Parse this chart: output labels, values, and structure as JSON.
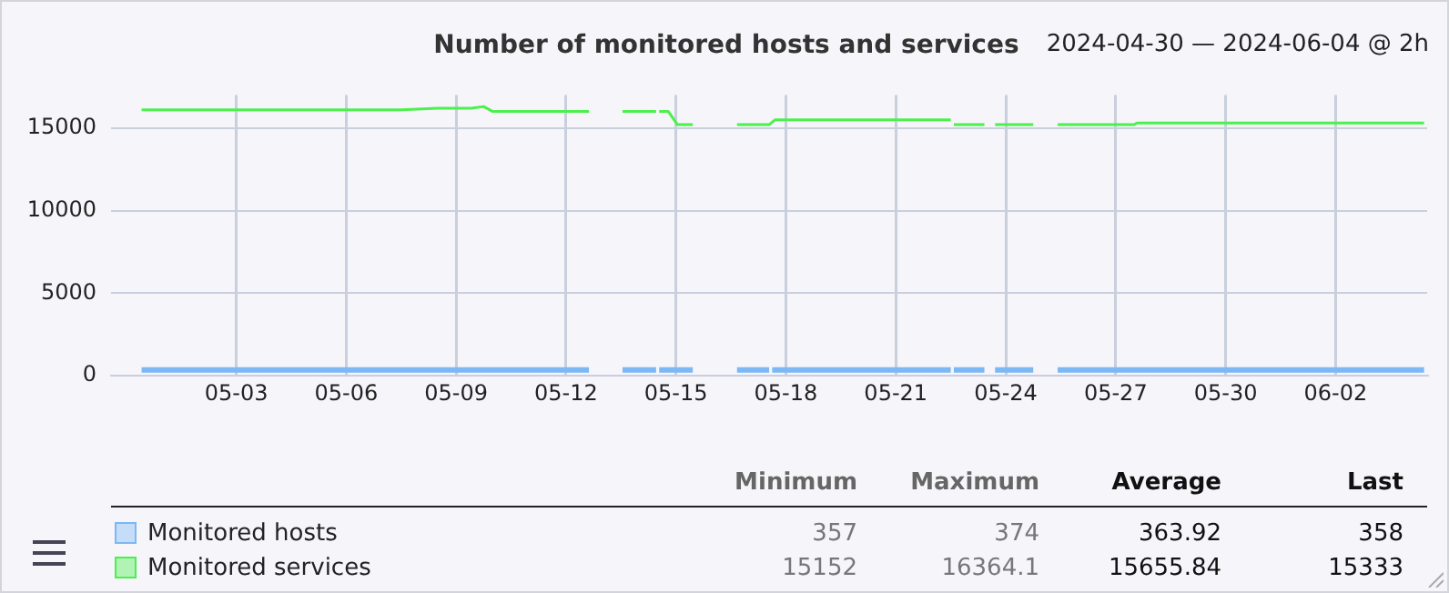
{
  "chart_data": {
    "type": "line",
    "title": "Number of monitored hosts and services",
    "subtitle": "2024-04-30 — 2024-06-04 @ 2h",
    "xlim": [
      "2024-04-29T14:00",
      "2024-06-04T12:00"
    ],
    "xticks": [
      {
        "value": "2024-05-03",
        "label": "05-03"
      },
      {
        "value": "2024-05-06",
        "label": "05-06"
      },
      {
        "value": "2024-05-09",
        "label": "05-09"
      },
      {
        "value": "2024-05-12",
        "label": "05-12"
      },
      {
        "value": "2024-05-15",
        "label": "05-15"
      },
      {
        "value": "2024-05-18",
        "label": "05-18"
      },
      {
        "value": "2024-05-21",
        "label": "05-21"
      },
      {
        "value": "2024-05-24",
        "label": "05-24"
      },
      {
        "value": "2024-05-27",
        "label": "05-27"
      },
      {
        "value": "2024-05-30",
        "label": "05-30"
      },
      {
        "value": "2024-06-02",
        "label": "06-02"
      }
    ],
    "ylim": [
      0,
      17000
    ],
    "yticks": [
      0,
      5000,
      10000,
      15000
    ],
    "grid": true,
    "legend": "bottom",
    "marker": "none",
    "line_style": "solid",
    "series": [
      {
        "name": "Monitored hosts",
        "color": "#7cb8f4",
        "x": [
          "2024-04-30T10:00",
          "2024-05-08T12:00",
          "2024-05-12T15:00",
          "2024-05-13T02:00",
          "2024-05-13T13:00",
          "2024-05-14T11:00",
          "2024-05-14T12:00",
          "2024-05-14T13:00",
          "2024-05-15T11:00",
          "2024-05-16T00:00",
          "2024-05-16T16:00",
          "2024-05-17T13:00",
          "2024-05-17T14:00",
          "2024-05-17T15:00",
          "2024-05-22T12:00",
          "2024-05-22T13:00",
          "2024-05-22T14:00",
          "2024-05-23T10:00",
          "2024-05-23T13:00",
          "2024-05-23T17:00",
          "2024-05-24T18:00",
          "2024-05-25T02:00",
          "2024-05-25T10:00",
          "2024-06-04T10:00"
        ],
        "values": [
          360,
          360,
          360,
          null,
          360,
          360,
          null,
          360,
          360,
          null,
          360,
          360,
          null,
          360,
          360,
          null,
          360,
          360,
          null,
          360,
          360,
          null,
          360,
          360
        ]
      },
      {
        "name": "Monitored services",
        "color": "#4cf04c",
        "x": [
          "2024-04-30T10:00",
          "2024-05-07T12:00",
          "2024-05-08T12:00",
          "2024-05-09T10:00",
          "2024-05-09T18:00",
          "2024-05-10T00:00",
          "2024-05-12T15:00",
          "2024-05-13T02:00",
          "2024-05-13T13:00",
          "2024-05-14T11:00",
          "2024-05-14T12:00",
          "2024-05-14T13:00",
          "2024-05-14T19:00",
          "2024-05-15T01:00",
          "2024-05-15T11:00",
          "2024-05-16T00:00",
          "2024-05-16T16:00",
          "2024-05-17T13:00",
          "2024-05-17T17:00",
          "2024-05-22T12:00",
          "2024-05-22T13:00",
          "2024-05-22T14:00",
          "2024-05-23T10:00",
          "2024-05-23T13:00",
          "2024-05-23T17:00",
          "2024-05-24T18:00",
          "2024-05-25T02:00",
          "2024-05-25T10:00",
          "2024-05-27T12:00",
          "2024-05-27T14:00",
          "2024-06-04T10:00"
        ],
        "values": [
          16100,
          16100,
          16200,
          16200,
          16300,
          16000,
          16000,
          null,
          16000,
          16000,
          null,
          16000,
          16000,
          15200,
          15200,
          null,
          15200,
          15200,
          15500,
          15500,
          null,
          15200,
          15200,
          null,
          15200,
          15200,
          null,
          15200,
          15200,
          15300,
          15300
        ]
      }
    ],
    "annotations": [
      "Minimum",
      "Maximum",
      "Average",
      "Last",
      "357",
      "374",
      "363.92",
      "358",
      "15152",
      "16364.1",
      "15655.84",
      "15333"
    ]
  }
}
